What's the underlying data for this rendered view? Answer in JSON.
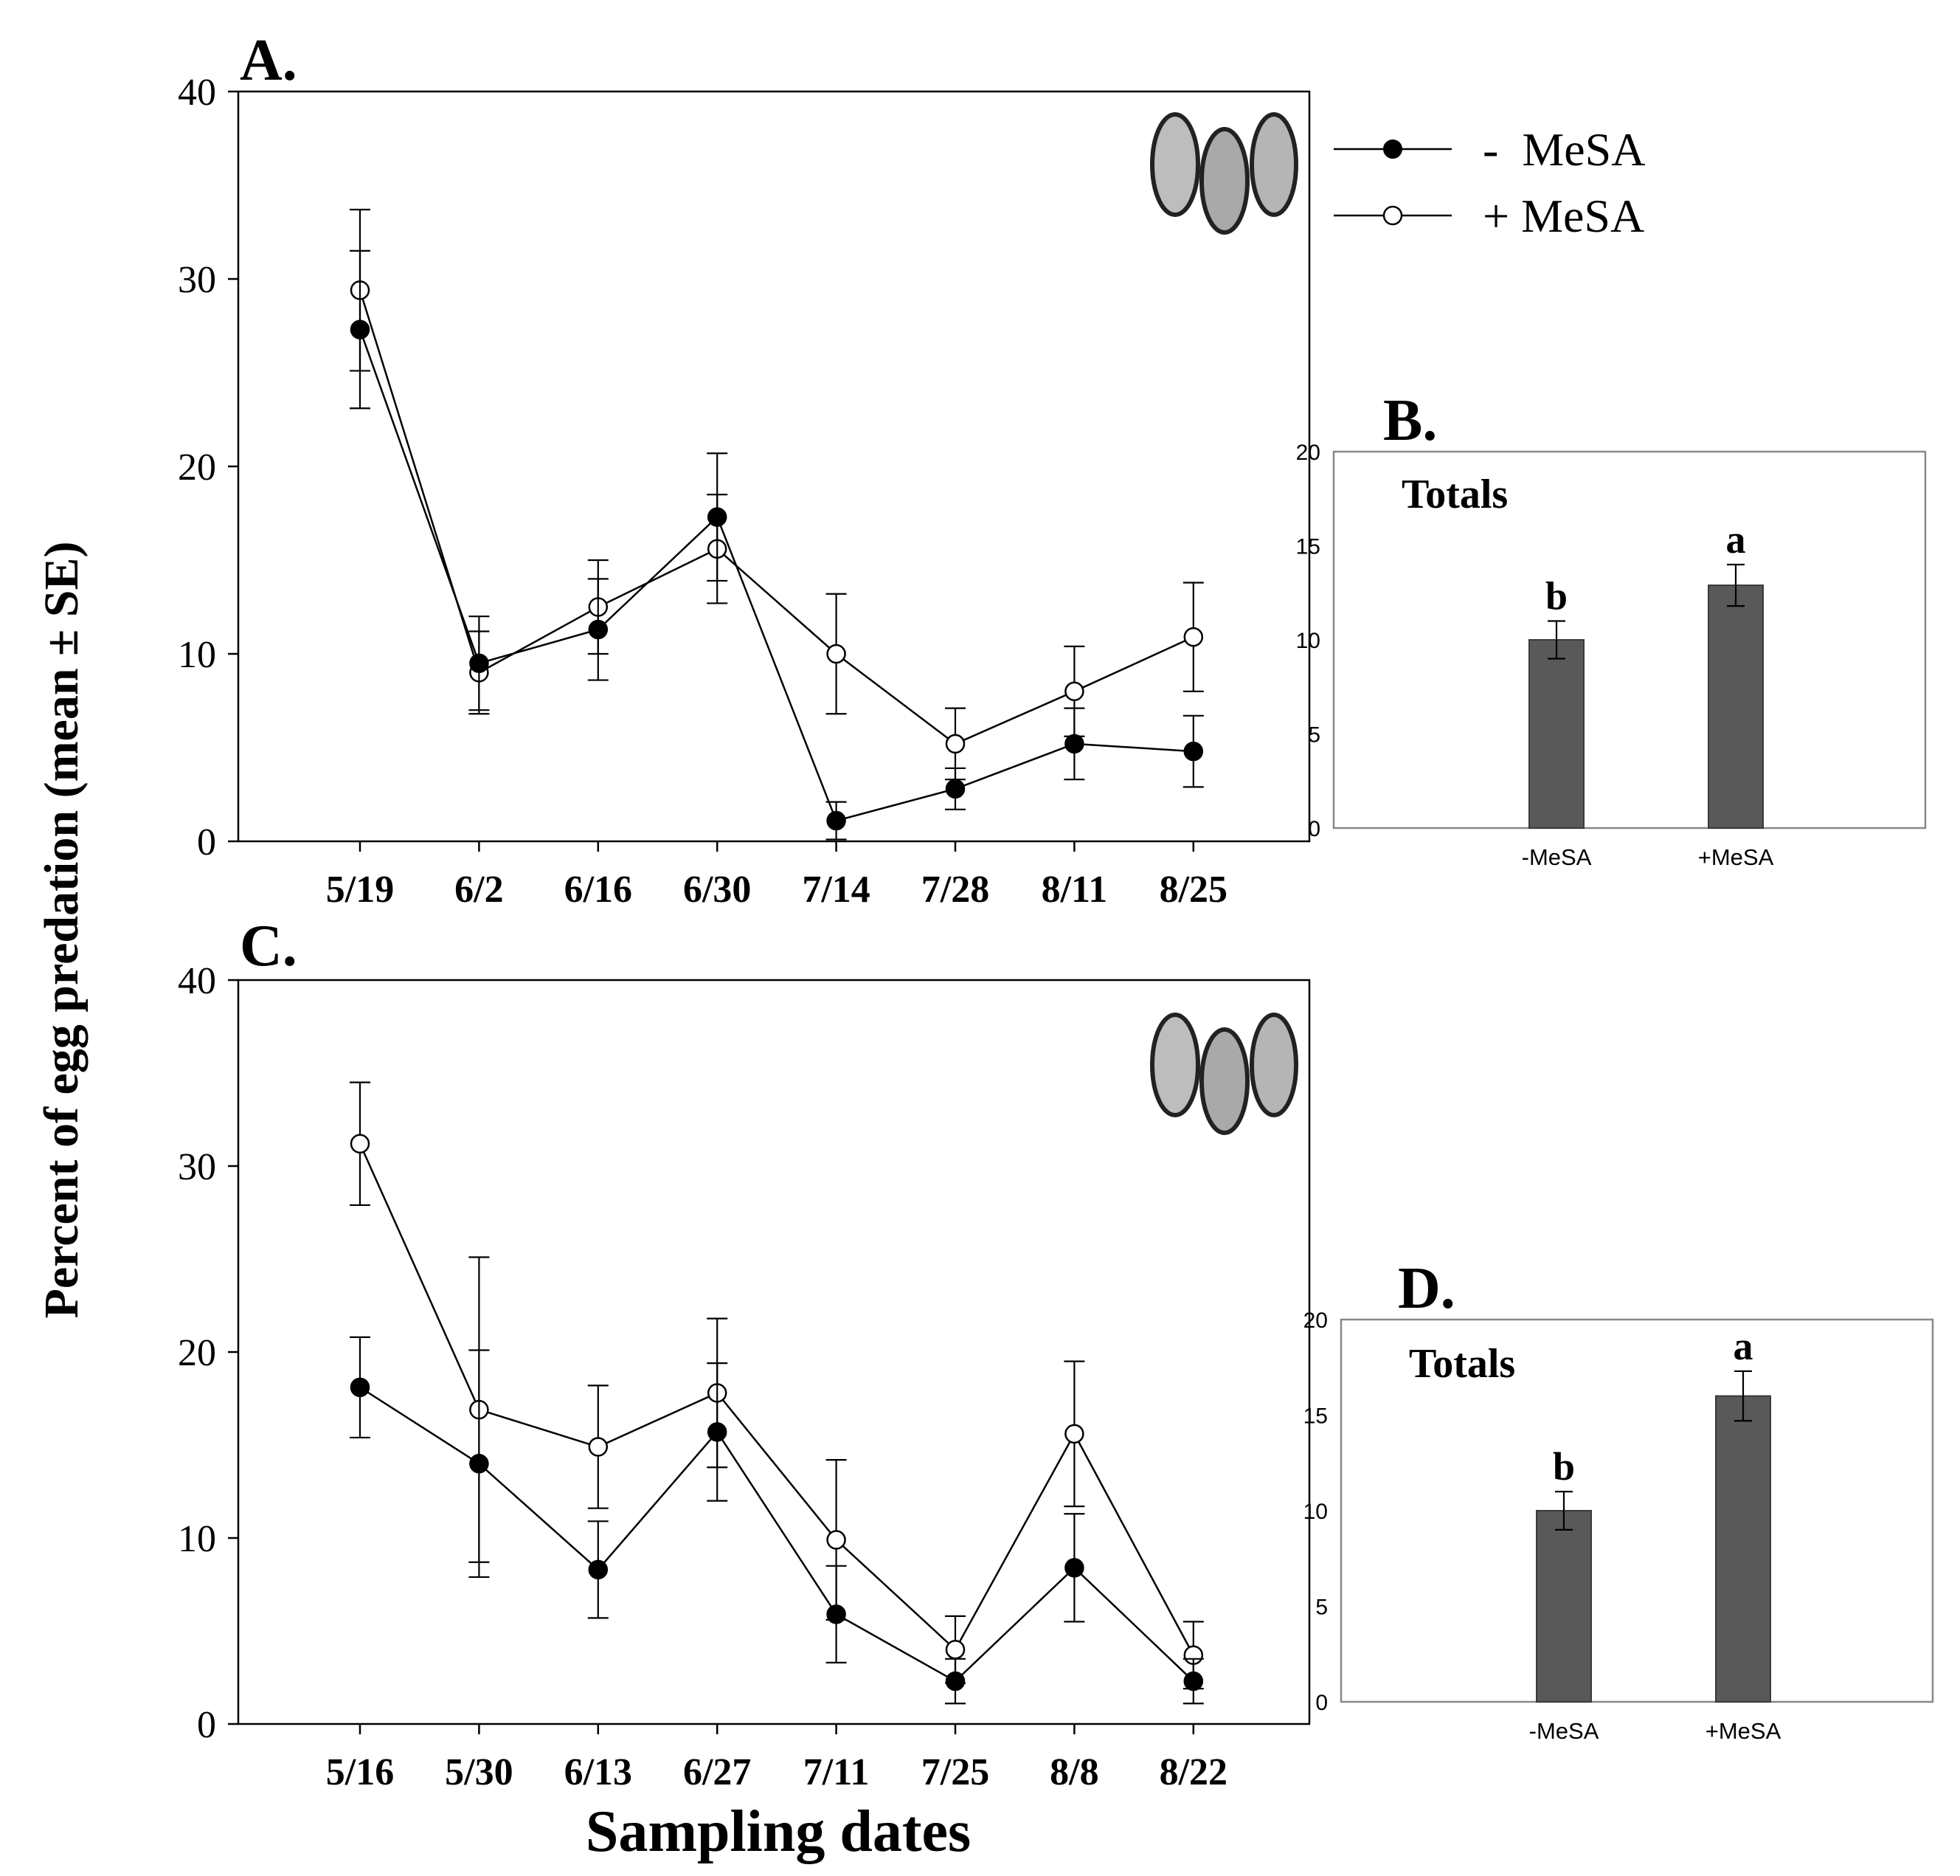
{
  "figure": {
    "y_axis_label": "Percent of egg predation (mean ± SE)",
    "x_axis_label": "Sampling dates"
  },
  "legend": {
    "items": [
      {
        "label": "-  MeSA",
        "marker": "filled"
      },
      {
        "label": "+ MeSA",
        "marker": "open"
      }
    ]
  },
  "colors": {
    "line": "#000000",
    "bar_fill": "#595959",
    "bar_edge": "#3a3a3a",
    "frame_light": "#888888"
  },
  "chart_data": [
    {
      "panel": "A.",
      "type": "line",
      "categories": [
        "5/19",
        "6/2",
        "6/16",
        "6/30",
        "7/14",
        "7/28",
        "8/11",
        "8/25"
      ],
      "ylim": [
        0,
        40
      ],
      "yticks": [
        0,
        10,
        20,
        30,
        40
      ],
      "series": [
        {
          "name": "- MeSA",
          "marker": "filled",
          "values": [
            27.3,
            9.5,
            11.3,
            17.3,
            1.1,
            2.8,
            5.2,
            4.8
          ],
          "errors": [
            4.2,
            2.5,
            2.7,
            3.4,
            1.0,
            1.1,
            1.9,
            1.9
          ]
        },
        {
          "name": "+ MeSA",
          "marker": "open",
          "values": [
            29.4,
            9.0,
            12.5,
            15.6,
            10.0,
            5.2,
            8.0,
            10.9
          ],
          "errors": [
            4.3,
            2.2,
            2.5,
            2.9,
            3.2,
            1.9,
            2.4,
            2.9
          ]
        }
      ]
    },
    {
      "panel": "B.",
      "type": "bar",
      "title": "Totals",
      "categories": [
        "-MeSA",
        "+MeSA"
      ],
      "values": [
        10.0,
        12.9
      ],
      "errors": [
        1.0,
        1.1
      ],
      "letters": [
        "b",
        "a"
      ],
      "ylim": [
        0,
        20
      ],
      "yticks": [
        0,
        5,
        10,
        15,
        20
      ]
    },
    {
      "panel": "C.",
      "type": "line",
      "categories": [
        "5/16",
        "5/30",
        "6/13",
        "6/27",
        "7/11",
        "7/25",
        "8/8",
        "8/22"
      ],
      "ylim": [
        0,
        40
      ],
      "yticks": [
        0,
        10,
        20,
        30,
        40
      ],
      "series": [
        {
          "name": "- MeSA",
          "marker": "filled",
          "values": [
            18.1,
            14.0,
            8.3,
            15.7,
            5.9,
            2.3,
            8.4,
            2.3
          ],
          "errors": [
            2.7,
            6.1,
            2.6,
            3.7,
            2.6,
            1.2,
            2.9,
            1.2
          ]
        },
        {
          "name": "+ MeSA",
          "marker": "open",
          "values": [
            31.2,
            16.9,
            14.9,
            17.8,
            9.9,
            4.0,
            15.6,
            3.7
          ],
          "errors": [
            3.3,
            8.2,
            3.3,
            4.0,
            4.3,
            1.8,
            3.9,
            1.8
          ]
        }
      ]
    },
    {
      "panel": "D.",
      "type": "bar",
      "title": "Totals",
      "categories": [
        "-MeSA",
        "+MeSA"
      ],
      "values": [
        10.0,
        16.0
      ],
      "errors": [
        1.0,
        1.3
      ],
      "letters": [
        "b",
        "a"
      ],
      "ylim": [
        0,
        20
      ],
      "yticks": [
        0,
        5,
        10,
        15,
        20
      ]
    }
  ]
}
